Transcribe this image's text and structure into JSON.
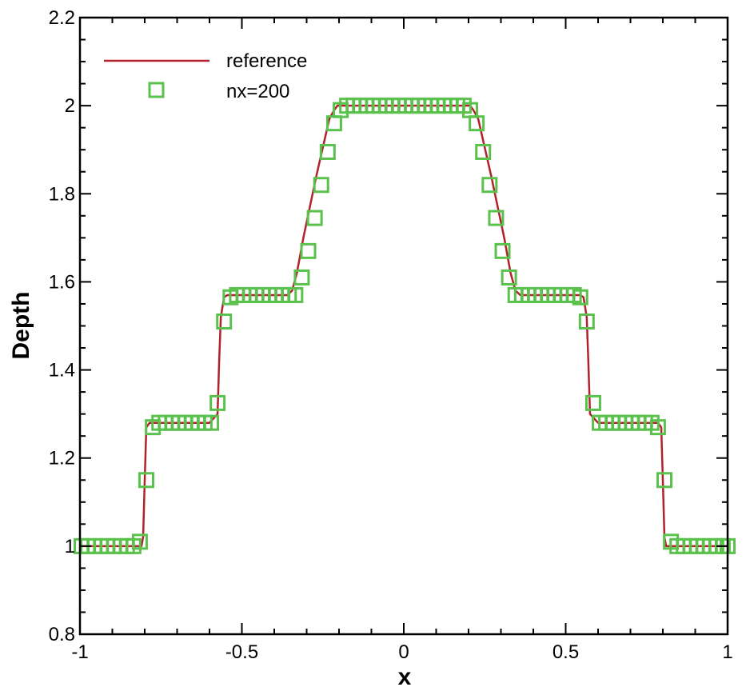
{
  "chart_data": {
    "type": "line",
    "title": "",
    "xlabel": "x",
    "ylabel": "Depth",
    "xlim": [
      -1,
      1
    ],
    "ylim": [
      0.8,
      2.2
    ],
    "x_ticks": [
      -1,
      -0.5,
      0,
      0.5,
      1
    ],
    "x_tick_labels": [
      "-1",
      "-0.5",
      "0",
      "0.5",
      "1"
    ],
    "y_ticks": [
      0.8,
      1,
      1.2,
      1.4,
      1.6,
      1.8,
      2,
      2.2
    ],
    "y_tick_labels": [
      "0.8",
      "1",
      "1.2",
      "1.4",
      "1.6",
      "1.8",
      "2",
      "2.2"
    ],
    "grid": false,
    "legend_position": "top-left",
    "series": [
      {
        "name": "reference",
        "style": "line",
        "color": "#b2222d",
        "x": [
          -1,
          -0.81,
          -0.805,
          -0.8,
          -0.795,
          -0.785,
          -0.6,
          -0.575,
          -0.57,
          -0.565,
          -0.555,
          -0.545,
          -0.5,
          -0.4,
          -0.36,
          -0.345,
          -0.33,
          -0.31,
          -0.27,
          -0.23,
          -0.215,
          -0.205,
          -0.195,
          0,
          0.195,
          0.205,
          0.215,
          0.23,
          0.27,
          0.31,
          0.33,
          0.345,
          0.36,
          0.4,
          0.5,
          0.545,
          0.555,
          0.565,
          0.57,
          0.575,
          0.6,
          0.785,
          0.795,
          0.8,
          0.805,
          0.81,
          1
        ],
        "values": [
          1.0,
          1.0,
          1.02,
          1.15,
          1.27,
          1.28,
          1.28,
          1.3,
          1.42,
          1.52,
          1.565,
          1.57,
          1.57,
          1.57,
          1.57,
          1.58,
          1.62,
          1.7,
          1.84,
          1.97,
          1.99,
          2.0,
          2.0,
          2.0,
          2.0,
          2.0,
          1.99,
          1.97,
          1.84,
          1.7,
          1.62,
          1.58,
          1.57,
          1.57,
          1.57,
          1.57,
          1.565,
          1.52,
          1.42,
          1.3,
          1.28,
          1.28,
          1.27,
          1.15,
          1.02,
          1.0,
          1.0
        ]
      },
      {
        "name": "nx=200",
        "style": "markers",
        "marker": "square",
        "color": "#5ac24c",
        "x": [
          -0.995,
          -0.975,
          -0.955,
          -0.935,
          -0.915,
          -0.895,
          -0.875,
          -0.855,
          -0.835,
          -0.815,
          -0.795,
          -0.775,
          -0.755,
          -0.735,
          -0.715,
          -0.695,
          -0.675,
          -0.655,
          -0.635,
          -0.615,
          -0.595,
          -0.575,
          -0.555,
          -0.535,
          -0.515,
          -0.495,
          -0.475,
          -0.455,
          -0.435,
          -0.415,
          -0.395,
          -0.375,
          -0.355,
          -0.335,
          -0.315,
          -0.295,
          -0.275,
          -0.255,
          -0.235,
          -0.215,
          -0.195,
          -0.175,
          -0.155,
          -0.135,
          -0.115,
          -0.095,
          -0.075,
          -0.055,
          -0.035,
          -0.015,
          0.005,
          0.025,
          0.045,
          0.065,
          0.085,
          0.105,
          0.125,
          0.145,
          0.165,
          0.185,
          0.205,
          0.225,
          0.245,
          0.265,
          0.285,
          0.305,
          0.325,
          0.345,
          0.365,
          0.385,
          0.405,
          0.425,
          0.445,
          0.465,
          0.485,
          0.505,
          0.525,
          0.545,
          0.565,
          0.585,
          0.605,
          0.625,
          0.645,
          0.665,
          0.685,
          0.705,
          0.725,
          0.745,
          0.765,
          0.785,
          0.805,
          0.825,
          0.845,
          0.865,
          0.885,
          0.905,
          0.925,
          0.945,
          0.965,
          0.985,
          1.0
        ],
        "values": [
          1.0,
          1.0,
          1.0,
          1.0,
          1.0,
          1.0,
          1.0,
          1.0,
          1.0,
          1.01,
          1.15,
          1.27,
          1.28,
          1.28,
          1.28,
          1.28,
          1.28,
          1.28,
          1.28,
          1.28,
          1.28,
          1.325,
          1.51,
          1.565,
          1.57,
          1.57,
          1.57,
          1.57,
          1.57,
          1.57,
          1.57,
          1.57,
          1.57,
          1.57,
          1.61,
          1.67,
          1.745,
          1.82,
          1.895,
          1.96,
          1.99,
          2.0,
          2.0,
          2.0,
          2.0,
          2.0,
          2.0,
          2.0,
          2.0,
          2.0,
          2.0,
          2.0,
          2.0,
          2.0,
          2.0,
          2.0,
          2.0,
          2.0,
          2.0,
          2.0,
          1.99,
          1.96,
          1.895,
          1.82,
          1.745,
          1.67,
          1.61,
          1.57,
          1.57,
          1.57,
          1.57,
          1.57,
          1.57,
          1.57,
          1.57,
          1.57,
          1.57,
          1.565,
          1.51,
          1.325,
          1.28,
          1.28,
          1.28,
          1.28,
          1.28,
          1.28,
          1.28,
          1.28,
          1.28,
          1.27,
          1.15,
          1.01,
          1.0,
          1.0,
          1.0,
          1.0,
          1.0,
          1.0,
          1.0,
          1.0,
          1.0
        ]
      }
    ]
  }
}
